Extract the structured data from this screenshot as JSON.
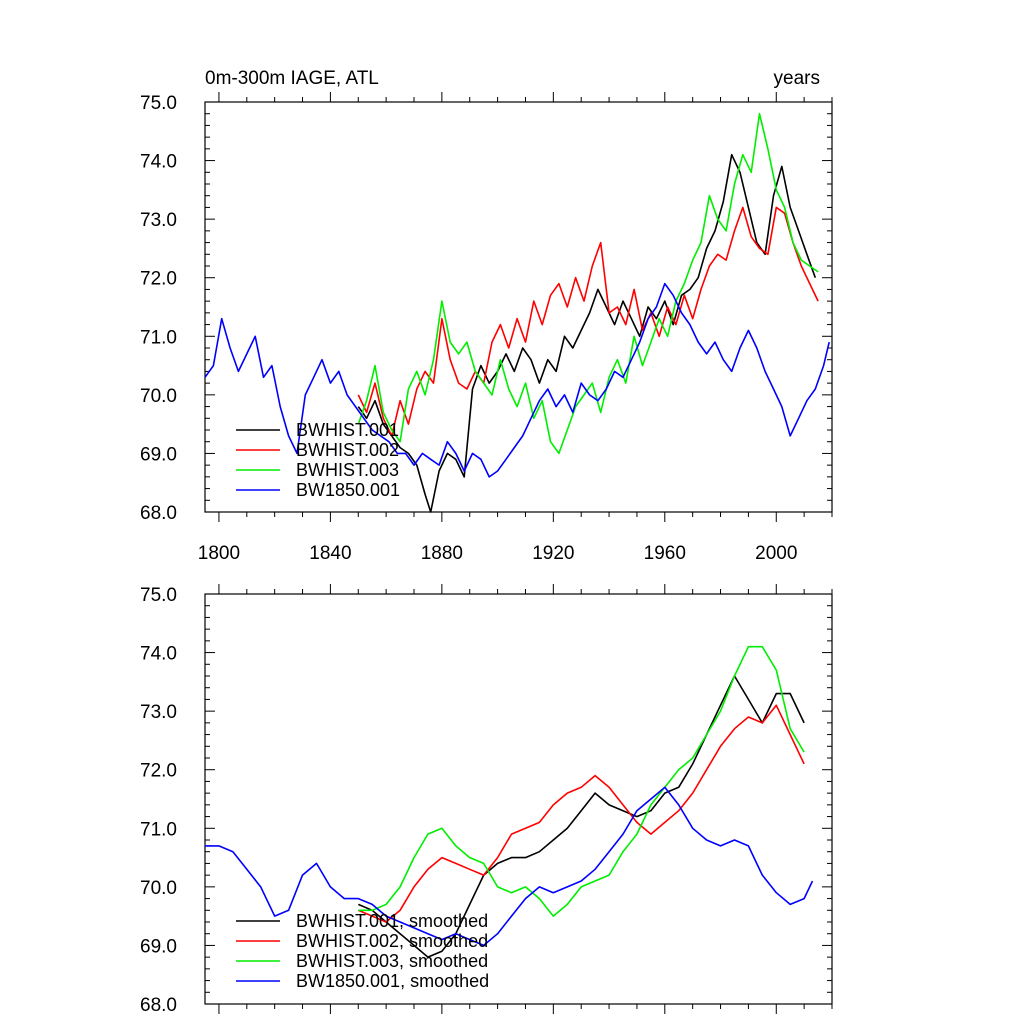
{
  "chart_data": [
    {
      "type": "line",
      "title": "0m-300m IAGE, ATL",
      "units": "years",
      "xlim": [
        1795,
        2020
      ],
      "ylim": [
        68.0,
        75.0
      ],
      "xticks": [
        1800,
        1840,
        1880,
        1920,
        1960,
        2000
      ],
      "xtick_labels": [
        "1800",
        "1840",
        "1880",
        "1920",
        "1960",
        "2000"
      ],
      "yticks": [
        68,
        69,
        70,
        71,
        72,
        73,
        74,
        75
      ],
      "ytick_labels": [
        "68.0",
        "69.0",
        "70.0",
        "71.0",
        "72.0",
        "73.0",
        "74.0",
        "75.0"
      ],
      "legend_position": "bottom-left",
      "series": [
        {
          "name": "BWHIST.001",
          "color": "#000000",
          "x": [
            1850,
            1853,
            1856,
            1859,
            1862,
            1865,
            1868,
            1871,
            1874,
            1876,
            1879,
            1882,
            1885,
            1888,
            1891,
            1894,
            1897,
            1900,
            1903,
            1906,
            1909,
            1912,
            1915,
            1918,
            1921,
            1924,
            1927,
            1930,
            1933,
            1936,
            1939,
            1942,
            1945,
            1948,
            1951,
            1954,
            1957,
            1960,
            1963,
            1966,
            1969,
            1972,
            1975,
            1978,
            1981,
            1984,
            1987,
            1990,
            1993,
            1996,
            1999,
            2002,
            2005,
            2008,
            2011,
            2014
          ],
          "y": [
            69.8,
            69.6,
            69.9,
            69.5,
            69.3,
            69.1,
            69.0,
            68.8,
            68.3,
            68.0,
            68.7,
            69.0,
            68.9,
            68.6,
            70.1,
            70.5,
            70.2,
            70.4,
            70.7,
            70.4,
            70.8,
            70.6,
            70.2,
            70.6,
            70.4,
            71.0,
            70.8,
            71.1,
            71.4,
            71.8,
            71.5,
            71.2,
            71.6,
            71.3,
            71.0,
            71.5,
            71.3,
            71.6,
            71.2,
            71.7,
            71.8,
            72.0,
            72.5,
            72.8,
            73.3,
            74.1,
            73.8,
            73.2,
            72.6,
            72.4,
            73.4,
            73.9,
            73.2,
            72.8,
            72.4,
            72.0
          ]
        },
        {
          "name": "BWHIST.002",
          "color": "#ff0000",
          "x": [
            1850,
            1853,
            1856,
            1859,
            1862,
            1865,
            1868,
            1871,
            1874,
            1877,
            1880,
            1883,
            1886,
            1889,
            1892,
            1895,
            1898,
            1901,
            1904,
            1907,
            1910,
            1913,
            1916,
            1919,
            1922,
            1925,
            1928,
            1931,
            1934,
            1937,
            1940,
            1943,
            1946,
            1949,
            1952,
            1955,
            1958,
            1961,
            1964,
            1967,
            1970,
            1973,
            1976,
            1979,
            1982,
            1985,
            1988,
            1991,
            1994,
            1997,
            2000,
            2003,
            2006,
            2009,
            2012,
            2015
          ],
          "y": [
            70.0,
            69.7,
            70.2,
            69.6,
            69.3,
            69.9,
            69.5,
            70.1,
            70.4,
            70.2,
            71.3,
            70.6,
            70.2,
            70.1,
            70.4,
            70.2,
            70.9,
            71.2,
            70.8,
            71.3,
            70.9,
            71.6,
            71.2,
            71.7,
            71.9,
            71.5,
            72.0,
            71.6,
            72.2,
            72.6,
            71.4,
            71.5,
            71.2,
            71.8,
            71.1,
            71.4,
            71.0,
            71.5,
            71.2,
            71.7,
            71.3,
            71.8,
            72.2,
            72.4,
            72.3,
            72.8,
            73.2,
            72.7,
            72.5,
            72.4,
            73.2,
            73.1,
            72.6,
            72.2,
            71.9,
            71.6
          ]
        },
        {
          "name": "BWHIST.003",
          "color": "#00ee00",
          "x": [
            1850,
            1853,
            1856,
            1859,
            1862,
            1865,
            1868,
            1871,
            1874,
            1877,
            1880,
            1883,
            1886,
            1889,
            1892,
            1895,
            1898,
            1901,
            1904,
            1907,
            1910,
            1913,
            1916,
            1919,
            1922,
            1925,
            1928,
            1931,
            1934,
            1937,
            1940,
            1943,
            1946,
            1949,
            1952,
            1955,
            1958,
            1961,
            1964,
            1967,
            1970,
            1973,
            1976,
            1979,
            1982,
            1985,
            1988,
            1991,
            1994,
            1997,
            2000,
            2003,
            2006,
            2009,
            2012,
            2015
          ],
          "y": [
            69.5,
            69.9,
            70.5,
            69.7,
            69.4,
            69.2,
            70.1,
            70.4,
            70.0,
            70.6,
            71.6,
            70.9,
            70.7,
            70.9,
            70.4,
            70.2,
            70.0,
            70.6,
            70.1,
            69.8,
            70.2,
            69.6,
            69.9,
            69.2,
            69.0,
            69.4,
            69.8,
            70.0,
            70.2,
            69.7,
            70.3,
            70.6,
            70.2,
            71.0,
            70.5,
            70.9,
            71.3,
            71.0,
            71.6,
            71.9,
            72.3,
            72.6,
            73.4,
            73.0,
            72.8,
            73.6,
            74.1,
            73.8,
            74.8,
            74.2,
            73.5,
            73.2,
            72.6,
            72.3,
            72.2,
            72.1
          ]
        },
        {
          "name": "BW1850.001",
          "color": "#0000ff",
          "x": [
            1795,
            1798,
            1801,
            1804,
            1807,
            1810,
            1813,
            1816,
            1819,
            1822,
            1825,
            1828,
            1831,
            1834,
            1837,
            1840,
            1843,
            1846,
            1849,
            1852,
            1855,
            1858,
            1861,
            1864,
            1867,
            1870,
            1873,
            1876,
            1879,
            1882,
            1885,
            1888,
            1891,
            1894,
            1897,
            1900,
            1903,
            1906,
            1909,
            1912,
            1915,
            1918,
            1921,
            1924,
            1927,
            1930,
            1933,
            1936,
            1939,
            1942,
            1945,
            1948,
            1951,
            1954,
            1957,
            1960,
            1963,
            1966,
            1969,
            1972,
            1975,
            1978,
            1981,
            1984,
            1987,
            1990,
            1993,
            1996,
            1999,
            2002,
            2005,
            2008,
            2011,
            2014,
            2017,
            2019
          ],
          "y": [
            70.3,
            70.5,
            71.3,
            70.8,
            70.4,
            70.7,
            71.0,
            70.3,
            70.5,
            69.8,
            69.3,
            69.0,
            70.0,
            70.3,
            70.6,
            70.2,
            70.4,
            70.0,
            69.8,
            69.6,
            69.4,
            69.3,
            69.2,
            69.0,
            69.0,
            68.8,
            69.0,
            68.9,
            68.8,
            69.2,
            69.0,
            68.7,
            69.0,
            68.9,
            68.6,
            68.7,
            68.9,
            69.1,
            69.3,
            69.6,
            69.9,
            70.1,
            69.8,
            70.0,
            69.7,
            70.2,
            70.0,
            69.9,
            70.1,
            70.4,
            70.3,
            70.6,
            70.9,
            71.3,
            71.5,
            71.9,
            71.7,
            71.4,
            71.2,
            70.9,
            70.7,
            70.9,
            70.6,
            70.4,
            70.8,
            71.1,
            70.8,
            70.4,
            70.1,
            69.8,
            69.3,
            69.6,
            69.9,
            70.1,
            70.5,
            70.9
          ]
        }
      ]
    },
    {
      "type": "line",
      "title": "",
      "units": "",
      "xlim": [
        1795,
        2020
      ],
      "ylim": [
        68.0,
        75.0
      ],
      "xticks": [
        1800,
        1840,
        1880,
        1920,
        1960,
        2000
      ],
      "xtick_labels": [],
      "yticks": [
        68,
        69,
        70,
        71,
        72,
        73,
        74,
        75
      ],
      "ytick_labels": [
        "68.0",
        "69.0",
        "70.0",
        "71.0",
        "72.0",
        "73.0",
        "74.0",
        "75.0"
      ],
      "legend_position": "bottom-left",
      "series": [
        {
          "name": "BWHIST.001, smoothed",
          "color": "#000000",
          "x": [
            1850,
            1855,
            1860,
            1865,
            1870,
            1875,
            1880,
            1885,
            1890,
            1895,
            1900,
            1905,
            1910,
            1915,
            1920,
            1925,
            1930,
            1935,
            1940,
            1945,
            1950,
            1955,
            1960,
            1965,
            1970,
            1975,
            1980,
            1985,
            1990,
            1995,
            2000,
            2005,
            2010
          ],
          "y": [
            69.7,
            69.6,
            69.4,
            69.2,
            69.0,
            68.8,
            68.9,
            69.2,
            69.7,
            70.2,
            70.4,
            70.5,
            70.5,
            70.6,
            70.8,
            71.0,
            71.3,
            71.6,
            71.4,
            71.3,
            71.2,
            71.3,
            71.6,
            71.7,
            72.1,
            72.6,
            73.1,
            73.6,
            73.2,
            72.8,
            73.3,
            73.3,
            72.8
          ]
        },
        {
          "name": "BWHIST.002, smoothed",
          "color": "#ff0000",
          "x": [
            1850,
            1855,
            1860,
            1865,
            1870,
            1875,
            1880,
            1885,
            1890,
            1895,
            1900,
            1905,
            1910,
            1915,
            1920,
            1925,
            1930,
            1935,
            1940,
            1945,
            1950,
            1955,
            1960,
            1965,
            1970,
            1975,
            1980,
            1985,
            1990,
            1995,
            2000,
            2005,
            2010
          ],
          "y": [
            69.6,
            69.5,
            69.4,
            69.6,
            70.0,
            70.3,
            70.5,
            70.4,
            70.3,
            70.2,
            70.5,
            70.9,
            71.0,
            71.1,
            71.4,
            71.6,
            71.7,
            71.9,
            71.7,
            71.4,
            71.1,
            70.9,
            71.1,
            71.3,
            71.6,
            72.0,
            72.4,
            72.7,
            72.9,
            72.8,
            73.1,
            72.6,
            72.1
          ]
        },
        {
          "name": "BWHIST.003, smoothed",
          "color": "#00ee00",
          "x": [
            1850,
            1855,
            1860,
            1865,
            1870,
            1875,
            1880,
            1885,
            1890,
            1895,
            1900,
            1905,
            1910,
            1915,
            1920,
            1925,
            1930,
            1935,
            1940,
            1945,
            1950,
            1955,
            1960,
            1965,
            1970,
            1975,
            1980,
            1985,
            1990,
            1995,
            2000,
            2005,
            2010
          ],
          "y": [
            69.6,
            69.6,
            69.7,
            70.0,
            70.5,
            70.9,
            71.0,
            70.7,
            70.5,
            70.4,
            70.0,
            69.9,
            70.0,
            69.8,
            69.5,
            69.7,
            70.0,
            70.1,
            70.2,
            70.6,
            70.9,
            71.4,
            71.7,
            72.0,
            72.2,
            72.6,
            73.0,
            73.6,
            74.1,
            74.1,
            73.7,
            72.7,
            72.3
          ]
        },
        {
          "name": "BW1850.001, smoothed",
          "color": "#0000ff",
          "x": [
            1795,
            1800,
            1805,
            1810,
            1815,
            1820,
            1825,
            1830,
            1835,
            1840,
            1845,
            1850,
            1855,
            1860,
            1865,
            1870,
            1875,
            1880,
            1885,
            1890,
            1895,
            1900,
            1905,
            1910,
            1915,
            1920,
            1925,
            1930,
            1935,
            1940,
            1945,
            1950,
            1955,
            1960,
            1965,
            1970,
            1975,
            1980,
            1985,
            1990,
            1995,
            2000,
            2005,
            2010,
            2013
          ],
          "y": [
            70.7,
            70.7,
            70.6,
            70.3,
            70.0,
            69.5,
            69.6,
            70.2,
            70.4,
            70.0,
            69.8,
            69.8,
            69.7,
            69.5,
            69.4,
            69.3,
            69.2,
            69.1,
            69.2,
            69.1,
            69.0,
            69.2,
            69.5,
            69.8,
            70.0,
            69.9,
            70.0,
            70.1,
            70.3,
            70.6,
            70.9,
            71.3,
            71.5,
            71.7,
            71.4,
            71.0,
            70.8,
            70.7,
            70.8,
            70.7,
            70.2,
            69.9,
            69.7,
            69.8,
            70.1
          ]
        }
      ]
    }
  ]
}
